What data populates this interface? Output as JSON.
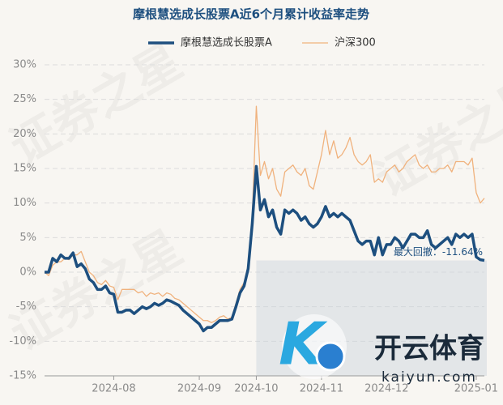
{
  "chart_data": {
    "type": "line",
    "title": "摩根慧选成长股票A近6个月累计收益率走势",
    "annotation": "最大回撤：-11.64%",
    "watermark": "证券之星",
    "logo_text": "开云体育",
    "logo_url": "kaiyun.com",
    "x": [
      0,
      1,
      2,
      3,
      4,
      5,
      6,
      7,
      8,
      9,
      10,
      11,
      12,
      13,
      14,
      15,
      16,
      17,
      18,
      19,
      20,
      21,
      22,
      23,
      24,
      25,
      26,
      27,
      28,
      29,
      30,
      31,
      32,
      33,
      34,
      35,
      36,
      37,
      38,
      39,
      40,
      41,
      42,
      43,
      44,
      45,
      46,
      47,
      48,
      49,
      50,
      51,
      52,
      53,
      54,
      55,
      56,
      57,
      58,
      59,
      60,
      61,
      62,
      63,
      64,
      65,
      66,
      67,
      68,
      69,
      70,
      71,
      72,
      73,
      74,
      75,
      76,
      77,
      78,
      79,
      80,
      81,
      82,
      83,
      84,
      85,
      86,
      87,
      88,
      89,
      90,
      91,
      92,
      93,
      94,
      95,
      96,
      97,
      98,
      99,
      100,
      101,
      102,
      103,
      104,
      105,
      106,
      107,
      108
    ],
    "xlim": [
      0,
      108
    ],
    "xticks": [
      {
        "value": 17,
        "label": "2024-08"
      },
      {
        "value": 38,
        "label": "2024-09"
      },
      {
        "value": 52,
        "label": "2024-10"
      },
      {
        "value": 68,
        "label": "2024-11"
      },
      {
        "value": 84,
        "label": "2024-12"
      },
      {
        "value": 106,
        "label": "2025-01"
      }
    ],
    "ylim": [
      -15,
      30
    ],
    "yticks": [
      {
        "value": -15,
        "label": "-15%"
      },
      {
        "value": -10,
        "label": "-10%"
      },
      {
        "value": -5,
        "label": "-5%"
      },
      {
        "value": 0,
        "label": "0%"
      },
      {
        "value": 5,
        "label": "5%"
      },
      {
        "value": 10,
        "label": "10%"
      },
      {
        "value": 15,
        "label": "15%"
      },
      {
        "value": 20,
        "label": "20%"
      },
      {
        "value": 25,
        "label": "25%"
      },
      {
        "value": 30,
        "label": "30%"
      }
    ],
    "grid": true,
    "series": [
      {
        "name": "摩根慧选成长股票A",
        "color": "#1d4f7f",
        "values": [
          0,
          0,
          2,
          1.5,
          2.5,
          2,
          2,
          2.8,
          0.8,
          1.2,
          0.5,
          -1,
          -1.5,
          -2.5,
          -2.5,
          -2,
          -3,
          -3.2,
          -5.8,
          -5.8,
          -5.5,
          -5.5,
          -6,
          -5.5,
          -5,
          -5.3,
          -5,
          -4.5,
          -4.8,
          -4.5,
          -4,
          -4.2,
          -4.5,
          -4.8,
          -5.5,
          -6,
          -6.5,
          -7,
          -7.5,
          -8.5,
          -8,
          -8,
          -7.5,
          -7,
          -7,
          -7,
          -6.8,
          -5,
          -3,
          -2,
          0.5,
          7,
          15.3,
          9,
          10.5,
          8,
          9,
          6.5,
          5.5,
          9,
          8.5,
          9,
          8.5,
          7.5,
          8,
          7,
          6.5,
          7,
          8,
          9.5,
          8,
          8.5,
          8,
          8.5,
          8,
          7.5,
          6,
          4.5,
          4,
          4.5,
          4.5,
          2.5,
          5,
          2.5,
          4,
          4,
          5,
          4.5,
          3.5,
          4.5,
          5.5,
          5.5,
          5,
          5,
          6,
          4,
          3.5,
          4,
          4.5,
          5,
          4,
          5.5,
          5,
          5.5,
          5,
          5.5,
          2.2,
          1.8,
          1.7
        ]
      },
      {
        "name": "沪深300",
        "color": "#f0b27d",
        "values": [
          0,
          -0.5,
          1,
          1.5,
          1.5,
          2,
          1.8,
          2.5,
          2.5,
          3,
          1.5,
          0,
          -0.5,
          -1.5,
          -1.8,
          -1.2,
          -2,
          -2.2,
          -4,
          -2.5,
          -2.5,
          -2.5,
          -2.5,
          -3,
          -2.8,
          -3.5,
          -3,
          -3.2,
          -3,
          -3.5,
          -3,
          -3.2,
          -3.8,
          -4,
          -4.5,
          -5,
          -5.5,
          -6,
          -6.5,
          -7,
          -7,
          -7.3,
          -7,
          -6.5,
          -6.3,
          -6.8,
          -6.5,
          -4.5,
          -2.5,
          -1.5,
          1,
          8,
          24,
          14,
          16,
          13.5,
          15,
          12,
          11,
          14.5,
          15,
          15.5,
          14.5,
          14,
          15,
          12.5,
          12,
          14.5,
          17,
          20.5,
          17,
          19,
          16.5,
          17,
          18,
          19.5,
          17,
          16,
          15.5,
          16,
          17,
          13,
          13.5,
          13,
          14.5,
          15,
          15.5,
          14.5,
          15,
          16,
          16.5,
          17,
          15.5,
          15,
          15.5,
          14.5,
          14.5,
          15,
          15,
          15.5,
          14.5,
          16,
          16,
          16,
          15.5,
          16.5,
          11.5,
          10,
          10.7
        ]
      }
    ]
  }
}
